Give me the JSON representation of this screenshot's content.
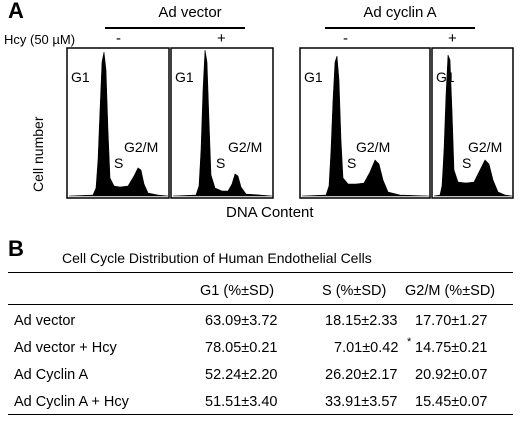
{
  "panel_a": {
    "letter": "A",
    "groups": [
      "Ad vector",
      "Ad cyclin A"
    ],
    "treatment_label": "Hcy (50 µM)",
    "signs": [
      "-",
      "+",
      "-",
      "+"
    ],
    "y_axis_label": "Cell number",
    "x_axis_label": "DNA Content",
    "peak_labels": {
      "g1": "G1",
      "s": "S",
      "g2m": "G2/M"
    }
  },
  "panel_b": {
    "letter": "B",
    "title": "Cell Cycle Distribution of Human Endothelial Cells",
    "columns": [
      "",
      "G1 (%±SD)",
      "S (%±SD)",
      "G2/M (%±SD)"
    ],
    "rows": [
      {
        "label": "Ad vector",
        "g1": "63.09±3.72",
        "s": "18.15±2.33",
        "g2m": "17.70±1.27",
        "mark": ""
      },
      {
        "label": "Ad vector + Hcy",
        "g1": "78.05±0.21",
        "s": "7.01±0.42",
        "g2m": "14.75±0.21",
        "mark": "*"
      },
      {
        "label": "Ad Cyclin A",
        "g1": "52.24±2.20",
        "s": "26.20±2.17",
        "g2m": "20.92±0.07",
        "mark": ""
      },
      {
        "label": "Ad Cyclin A + Hcy",
        "g1": "51.51±3.40",
        "s": "33.91±3.57",
        "g2m": "15.45±0.07",
        "mark": ""
      }
    ]
  }
}
